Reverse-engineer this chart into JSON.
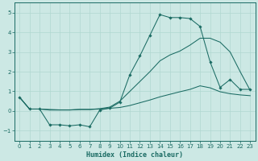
{
  "xlabel": "Humidex (Indice chaleur)",
  "bg_color": "#cce8e4",
  "line_color": "#1a6b63",
  "grid_color": "#b0d8d0",
  "xlim": [
    -0.5,
    23.5
  ],
  "ylim": [
    -1.5,
    5.5
  ],
  "xticks": [
    0,
    1,
    2,
    3,
    4,
    5,
    6,
    7,
    8,
    9,
    10,
    11,
    12,
    13,
    14,
    15,
    16,
    17,
    18,
    19,
    20,
    21,
    22,
    23
  ],
  "yticks": [
    -1,
    0,
    1,
    2,
    3,
    4,
    5
  ],
  "curve_markers_x": [
    0,
    1,
    2,
    3,
    4,
    5,
    6,
    7,
    8,
    9,
    10,
    11,
    12,
    13,
    14,
    15,
    16,
    17,
    18,
    19,
    20,
    21,
    22,
    23
  ],
  "curve_markers_y": [
    0.7,
    0.1,
    0.1,
    -0.7,
    -0.7,
    -0.75,
    -0.7,
    -0.8,
    0.05,
    0.15,
    0.45,
    1.85,
    2.8,
    3.85,
    4.9,
    4.75,
    4.75,
    4.7,
    4.3,
    2.5,
    1.2,
    1.6,
    1.1,
    1.1
  ],
  "curve_upper_x": [
    0,
    1,
    2,
    3,
    4,
    5,
    6,
    7,
    8,
    9,
    10,
    11,
    12,
    13,
    14,
    15,
    16,
    17,
    18,
    19,
    20,
    21,
    22,
    23
  ],
  "curve_upper_y": [
    0.7,
    0.1,
    0.1,
    0.05,
    0.05,
    0.05,
    0.08,
    0.08,
    0.12,
    0.2,
    0.5,
    1.0,
    1.5,
    2.0,
    2.55,
    2.85,
    3.05,
    3.35,
    3.7,
    3.7,
    3.5,
    3.0,
    2.0,
    1.05
  ],
  "curve_lower_x": [
    0,
    1,
    2,
    3,
    4,
    5,
    6,
    7,
    8,
    9,
    10,
    11,
    12,
    13,
    14,
    15,
    16,
    17,
    18,
    19,
    20,
    21,
    22,
    23
  ],
  "curve_lower_y": [
    0.7,
    0.1,
    0.1,
    0.08,
    0.06,
    0.06,
    0.08,
    0.08,
    0.1,
    0.14,
    0.18,
    0.28,
    0.42,
    0.56,
    0.72,
    0.85,
    0.98,
    1.1,
    1.28,
    1.18,
    0.98,
    0.88,
    0.82,
    0.78
  ]
}
